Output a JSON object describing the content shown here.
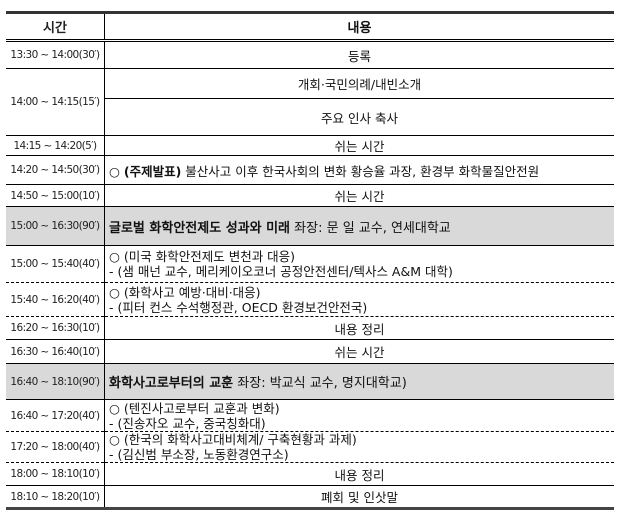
{
  "header": {
    "time": "시간",
    "content": "내용"
  },
  "rows": [
    {
      "time": "13:30 ~ 14:00(30′)",
      "content": "등록"
    },
    {
      "time": "14:00 ~ 14:15(15′)",
      "content": "개회·국민의례/내빈소개",
      "content2": "주요 인사 축사"
    },
    {
      "time": "14:15 ~ 14:20(5′)",
      "content": "쉬는 시간"
    },
    {
      "time": "14:20 ~ 14:50(30′)",
      "prefix": "○ ",
      "bold": "(주제발표)",
      "content": " 불산사고 이후 한국사회의 변화 황승율 과장, 환경부 화학물질안전원"
    },
    {
      "time": "14:50 ~ 15:00(10′)",
      "content": "쉬는 시간"
    },
    {
      "time": "15:00 ~ 16:30(90′)",
      "bold": "글로벌 화학안전제도 성과와 미래",
      "content": " 좌장: 문 일 교수, 연세대학교"
    },
    {
      "time": "15:00 ~ 15:40(40′)",
      "line1": "○ (미국 화학안전제도 변천과 대응)",
      "line2": " - (샘 매넌 교수, 메리케이오코너 공정안전센터/텍사스 A&M 대학)"
    },
    {
      "time": "15:40 ~ 16:20(40′)",
      "line1": "○ (화학사고 예방·대비·대응)",
      "line2": " - (피터 컨스 수석행정관, OECD 환경보건안전국)"
    },
    {
      "time": "16:20 ~ 16:30(10′)",
      "content": "내용 정리"
    },
    {
      "time": "16:30 ~ 16:40(10′)",
      "content": "쉬는 시간"
    },
    {
      "time": "16:40 ~ 18:10(90′)",
      "bold": "화학사고로부터의 교훈",
      "content": " 좌장: 박교식 교수, 명지대학교)"
    },
    {
      "time": "16:40 ~ 17:20(40′)",
      "line1": "○ (텐진사고로부터 교훈과 변화)",
      "line2": " - (진송자오 교수, 중국칭화대)"
    },
    {
      "time": "17:20 ~ 18:00(40′)",
      "line1": "○ (한국의 화학사고대비체계/ 구축현황과 과제)",
      "line2": " - (김신범 부소장, 노동환경연구소)"
    },
    {
      "time": "18:00 ~ 18:10(10′)",
      "content": "내용 정리"
    },
    {
      "time": "18:10 ~ 18:20(10′)",
      "content": "폐회 및 인삿말"
    }
  ]
}
